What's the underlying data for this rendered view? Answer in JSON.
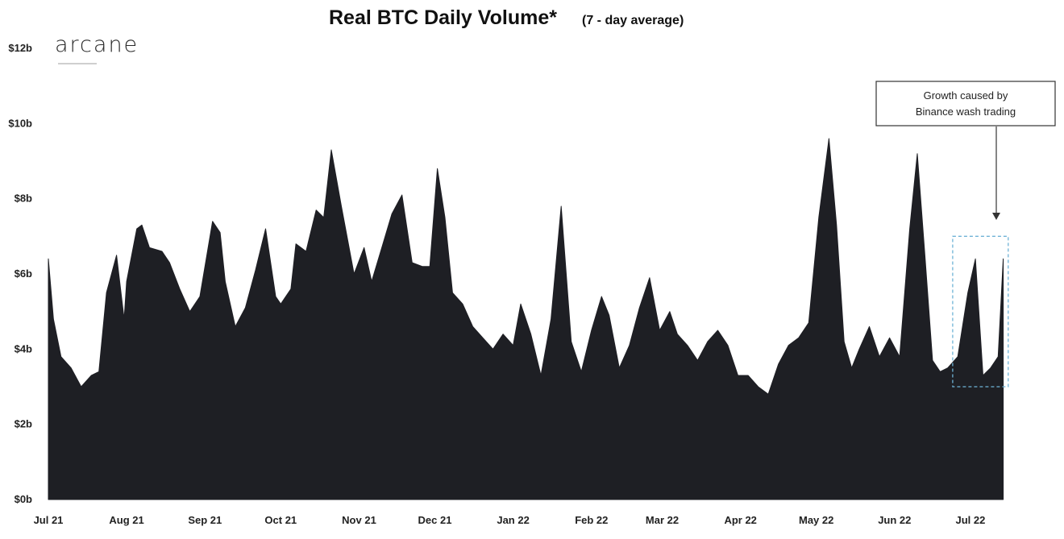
{
  "chart_data": {
    "type": "area",
    "title": "Real BTC Daily Volume*",
    "subtitle": "(7 - day average)",
    "brand": "arcane",
    "y_ticks": [
      "$0b",
      "$2b",
      "$4b",
      "$6b",
      "$8b",
      "$10b",
      "$12b"
    ],
    "y_tick_values": [
      0,
      2,
      4,
      6,
      8,
      10,
      12
    ],
    "ylim": [
      0,
      12
    ],
    "x_ticks": [
      "Jul 21",
      "Aug 21",
      "Sep 21",
      "Oct 21",
      "Nov 21",
      "Dec 21",
      "Jan 22",
      "Feb 22",
      "Mar 22",
      "Apr 22",
      "May 22",
      "Jun 22",
      "Jul 22"
    ],
    "x_tick_dates": [
      "2021-07-01",
      "2021-08-01",
      "2021-09-01",
      "2021-10-01",
      "2021-11-01",
      "2021-12-01",
      "2022-01-01",
      "2022-02-01",
      "2022-03-01",
      "2022-04-01",
      "2022-05-01",
      "2022-06-01",
      "2022-07-01"
    ],
    "xlim": [
      "2021-07-01",
      "2022-07-17"
    ],
    "grid": false,
    "fill_color": "#1e1f24",
    "series": [
      {
        "x": [
          "2021-07-01",
          "2021-07-03",
          "2021-07-06",
          "2021-07-10",
          "2021-07-14",
          "2021-07-18",
          "2021-07-21",
          "2021-07-24",
          "2021-07-28",
          "2021-07-31",
          "2021-08-01",
          "2021-08-05",
          "2021-08-07",
          "2021-08-10",
          "2021-08-15",
          "2021-08-18",
          "2021-08-22",
          "2021-08-26",
          "2021-08-30",
          "2021-09-04",
          "2021-09-07",
          "2021-09-09",
          "2021-09-13",
          "2021-09-17",
          "2021-09-21",
          "2021-09-25",
          "2021-09-29",
          "2021-10-01",
          "2021-10-05",
          "2021-10-07",
          "2021-10-11",
          "2021-10-15",
          "2021-10-18",
          "2021-10-21",
          "2021-10-25",
          "2021-10-30",
          "2021-11-03",
          "2021-11-06",
          "2021-11-10",
          "2021-11-14",
          "2021-11-18",
          "2021-11-22",
          "2021-11-26",
          "2021-11-29",
          "2021-12-02",
          "2021-12-05",
          "2021-12-08",
          "2021-12-12",
          "2021-12-16",
          "2021-12-20",
          "2021-12-24",
          "2021-12-28",
          "2022-01-01",
          "2022-01-04",
          "2022-01-08",
          "2022-01-12",
          "2022-01-16",
          "2022-01-20",
          "2022-01-24",
          "2022-01-28",
          "2022-02-01",
          "2022-02-05",
          "2022-02-08",
          "2022-02-12",
          "2022-02-16",
          "2022-02-20",
          "2022-02-24",
          "2022-02-28",
          "2022-03-04",
          "2022-03-07",
          "2022-03-11",
          "2022-03-15",
          "2022-03-19",
          "2022-03-23",
          "2022-03-27",
          "2022-03-31",
          "2022-04-04",
          "2022-04-08",
          "2022-04-12",
          "2022-04-16",
          "2022-04-20",
          "2022-04-24",
          "2022-04-28",
          "2022-05-02",
          "2022-05-06",
          "2022-05-09",
          "2022-05-12",
          "2022-05-15",
          "2022-05-18",
          "2022-05-22",
          "2022-05-26",
          "2022-05-30",
          "2022-06-03",
          "2022-06-07",
          "2022-06-10",
          "2022-06-13",
          "2022-06-16",
          "2022-06-19",
          "2022-06-22",
          "2022-06-26",
          "2022-06-30",
          "2022-07-03",
          "2022-07-06",
          "2022-07-09",
          "2022-07-12",
          "2022-07-14"
        ],
        "values": [
          6.4,
          4.8,
          3.8,
          3.5,
          3.0,
          3.3,
          3.4,
          5.5,
          6.5,
          4.8,
          5.8,
          7.2,
          7.3,
          6.7,
          6.6,
          6.3,
          5.6,
          5.0,
          5.4,
          7.4,
          7.1,
          5.8,
          4.6,
          5.1,
          6.1,
          7.2,
          5.4,
          5.2,
          5.6,
          6.8,
          6.6,
          7.7,
          7.5,
          9.3,
          7.8,
          6.0,
          6.7,
          5.8,
          6.7,
          7.6,
          8.1,
          6.3,
          6.2,
          6.2,
          8.8,
          7.5,
          5.5,
          5.2,
          4.6,
          4.3,
          4.0,
          4.4,
          4.1,
          5.2,
          4.4,
          3.3,
          4.8,
          7.8,
          4.2,
          3.4,
          4.5,
          5.4,
          4.9,
          3.5,
          4.1,
          5.1,
          5.9,
          4.5,
          5.0,
          4.4,
          4.1,
          3.7,
          4.2,
          4.5,
          4.1,
          3.3,
          3.3,
          3.0,
          2.8,
          3.6,
          4.1,
          4.3,
          4.7,
          7.5,
          9.6,
          7.3,
          4.2,
          3.5,
          4.0,
          4.6,
          3.8,
          4.3,
          3.8,
          7.2,
          9.2,
          6.5,
          3.7,
          3.4,
          3.5,
          3.8,
          5.5,
          6.4,
          3.3,
          3.5,
          3.8,
          6.4
        ]
      }
    ],
    "annotation": {
      "text_line1": "Growth caused by",
      "text_line2": "Binance wash trading",
      "highlight_x_range": [
        "2022-06-24",
        "2022-07-16"
      ],
      "highlight_y_range": [
        3.0,
        7.0
      ]
    }
  }
}
